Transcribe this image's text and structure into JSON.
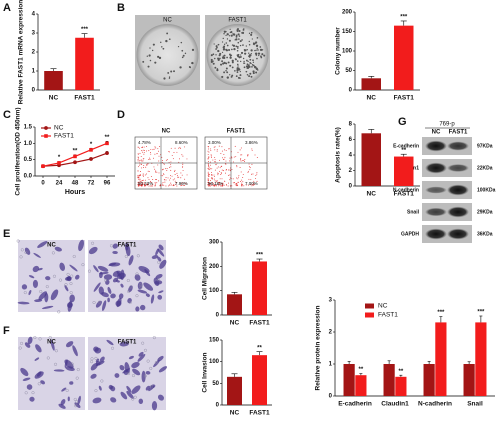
{
  "chart_data": [
    {
      "type": "bar",
      "panel": "A",
      "ylabel": "Relative FAST1 mRNA expression",
      "categories": [
        "NC",
        "FAST1"
      ],
      "values": [
        1,
        2.75
      ],
      "errors": [
        0.12,
        0.22
      ],
      "colors": [
        "#a31515",
        "#f21c1c"
      ],
      "significance": [
        null,
        "***"
      ],
      "ylim": [
        0,
        4
      ],
      "yticks": [
        0,
        1,
        2,
        3,
        4
      ]
    },
    {
      "type": "bar",
      "panel": "B",
      "ylabel": "Colony number",
      "categories": [
        "NC",
        "FAST1"
      ],
      "values": [
        30,
        165
      ],
      "errors": [
        5,
        12
      ],
      "colors": [
        "#a31515",
        "#f21c1c"
      ],
      "significance": [
        null,
        "***"
      ],
      "ylim": [
        0,
        200
      ],
      "yticks": [
        0,
        50,
        100,
        150,
        200
      ]
    },
    {
      "type": "line",
      "panel": "C",
      "ylabel": "Cell proliferation(OD 450nm)",
      "xlabel": "Hours",
      "x": [
        0,
        24,
        48,
        72,
        96
      ],
      "legend": "upper left",
      "series": [
        {
          "name": "NC",
          "color": "#a31515",
          "marker": "circle",
          "values": [
            0.3,
            0.33,
            0.42,
            0.52,
            0.7
          ],
          "errors": [
            0.03,
            0.03,
            0.03,
            0.04,
            0.05
          ]
        },
        {
          "name": "FAST1",
          "color": "#f21c1c",
          "marker": "square",
          "values": [
            0.3,
            0.4,
            0.6,
            0.8,
            1.0
          ],
          "errors": [
            0.03,
            0.04,
            0.05,
            0.05,
            0.06
          ]
        }
      ],
      "significance": [
        null,
        "*",
        "**",
        "*",
        "**"
      ],
      "xlim": [
        -12,
        108
      ],
      "xticks": [
        0,
        24,
        48,
        72,
        96
      ],
      "ylim": [
        0,
        1.5
      ],
      "yticks": [
        {
          "value": 0,
          "label": "0.0"
        },
        0.5,
        {
          "value": 1,
          "label": "1.0"
        },
        1.5
      ]
    },
    {
      "type": "bar",
      "panel": "D",
      "ylabel": "Apoptosis rate(%)",
      "categories": [
        "NC",
        "FAST1"
      ],
      "values": [
        6.8,
        3.8
      ],
      "errors": [
        0.5,
        0.3
      ],
      "colors": [
        "#a31515",
        "#f21c1c"
      ],
      "significance": [
        null,
        "**"
      ],
      "ylim": [
        0,
        8
      ],
      "yticks": [
        0,
        2,
        4,
        6,
        8
      ]
    },
    {
      "type": "bar",
      "panel": "E",
      "ylabel": "Cell Migration",
      "categories": [
        "NC",
        "FAST1"
      ],
      "values": [
        85,
        220
      ],
      "errors": [
        8,
        10
      ],
      "colors": [
        "#a31515",
        "#f21c1c"
      ],
      "significance": [
        null,
        "***"
      ],
      "ylim": [
        0,
        300
      ],
      "yticks": [
        0,
        100,
        200,
        300
      ]
    },
    {
      "type": "bar",
      "panel": "F",
      "ylabel": "Cell Invasion",
      "categories": [
        "NC",
        "FAST1"
      ],
      "values": [
        65,
        115
      ],
      "errors": [
        7,
        8
      ],
      "colors": [
        "#a31515",
        "#f21c1c"
      ],
      "significance": [
        null,
        "**"
      ],
      "ylim": [
        0,
        150
      ],
      "yticks": [
        0,
        50,
        100,
        150
      ]
    },
    {
      "type": "bar",
      "panel": "G",
      "ylabel": "Relative protein expression",
      "categories": [
        "E-cadherin",
        "Claudin1",
        "N-cadherin",
        "Snail"
      ],
      "legend": "upper left",
      "series": [
        {
          "name": "NC",
          "color": "#a31515",
          "values": [
            1,
            1,
            1,
            1
          ],
          "errors": [
            0.08,
            0.1,
            0.08,
            0.07
          ]
        },
        {
          "name": "FAST1",
          "color": "#f21c1c",
          "values": [
            0.65,
            0.6,
            2.3,
            2.3
          ],
          "errors": [
            0.05,
            0.05,
            0.18,
            0.2
          ]
        }
      ],
      "significance": [
        "**",
        "**",
        "***",
        "***"
      ],
      "ylim": [
        0,
        3
      ],
      "yticks": [
        0,
        1,
        2,
        3
      ]
    }
  ],
  "colony_assay": {
    "labels": [
      "NC",
      "FAST1"
    ]
  },
  "flow_cytometry": {
    "labels": [
      "NC",
      "FAST1"
    ],
    "quadrants": [
      [
        "4.78%",
        "8.60%",
        "80.43%",
        "7.99%"
      ],
      [
        "3.00%",
        "3.86%",
        "86.16%",
        "7.00%"
      ]
    ]
  },
  "transwell_migration": {
    "labels": [
      "NC",
      "FAST1"
    ]
  },
  "transwell_invasion": {
    "labels": [
      "NC",
      "FAST1"
    ]
  },
  "western_blot": {
    "cell_line": "769-p",
    "lanes": [
      "NC",
      "FAST1"
    ],
    "proteins": [
      "E-cadherin",
      "Claudin1",
      "N-cadherin",
      "Snail",
      "GAPDH"
    ],
    "sizes": [
      "97KDa",
      "22KDa",
      "100KDa",
      "29KDa",
      "36KDa"
    ]
  }
}
